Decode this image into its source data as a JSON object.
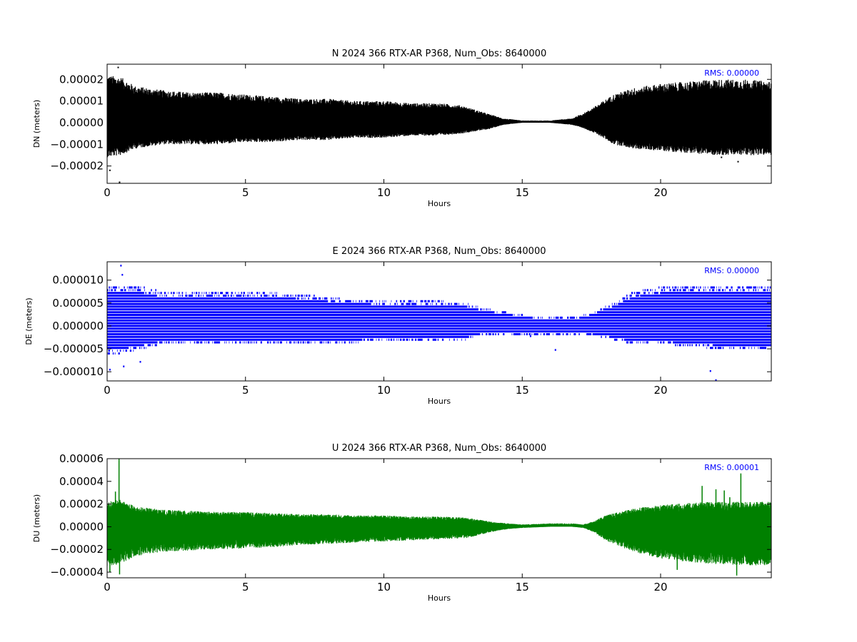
{
  "chart_data": [
    {
      "type": "scatter",
      "title": "N 2024 366 RTX-AR  P368, Num_Obs: 8640000",
      "xlabel": "Hours",
      "ylabel": "DN (meters)",
      "xlim": [
        0,
        24
      ],
      "ylim": [
        -2.8e-05,
        2.7e-05
      ],
      "xticks": [
        0,
        5,
        10,
        15,
        20
      ],
      "yticks": [
        -2e-05,
        -1e-05,
        0.0,
        1e-05,
        2e-05
      ],
      "ytick_labels": [
        "−0.00002",
        "−0.00001",
        "0.00000",
        "0.00001",
        "0.00002"
      ],
      "annotation": "RMS:  0.00000",
      "series_color": "#000000",
      "annotation_color": "#0000ff",
      "envelope": {
        "hours": [
          0,
          0.5,
          1,
          2,
          3,
          4,
          5,
          6,
          7,
          8,
          9,
          10,
          11,
          12,
          12.8,
          13.3,
          13.8,
          14.3,
          15,
          16,
          16.8,
          17.3,
          17.8,
          18.3,
          19,
          20,
          21,
          22,
          23,
          24
        ],
        "upper": [
          2.2e-05,
          2.1e-05,
          1.7e-05,
          1.5e-05,
          1.4e-05,
          1.4e-05,
          1.3e-05,
          1.2e-05,
          1.1e-05,
          1.1e-05,
          1e-05,
          1e-05,
          9e-06,
          9e-06,
          8e-06,
          6e-06,
          4e-06,
          2e-06,
          1e-06,
          1e-06,
          2e-06,
          5e-06,
          9e-06,
          1.3e-05,
          1.6e-05,
          1.8e-05,
          1.9e-05,
          2e-05,
          2e-05,
          1.9e-05
        ],
        "lower": [
          -1.6e-05,
          -1.5e-05,
          -1.2e-05,
          -1e-05,
          -1e-05,
          -1e-05,
          -9e-06,
          -9e-06,
          -8e-06,
          -8e-06,
          -7e-06,
          -7e-06,
          -6e-06,
          -6e-06,
          -5e-06,
          -4e-06,
          -3e-06,
          -1e-06,
          0.0,
          0.0,
          -1e-06,
          -3e-06,
          -6e-06,
          -1e-05,
          -1.2e-05,
          -1.3e-05,
          -1.4e-05,
          -1.5e-05,
          -1.5e-05,
          -1.5e-05
        ]
      },
      "outliers": [
        [
          0.4,
          2.55e-05
        ],
        [
          0.45,
          -2.75e-05
        ],
        [
          0.1,
          -2.2e-05
        ],
        [
          22.8,
          -1.8e-05
        ],
        [
          22.2,
          -1.6e-05
        ]
      ]
    },
    {
      "type": "scatter",
      "title": "E 2024 366 RTX-AR  P368, Num_Obs: 8640000",
      "xlabel": "Hours",
      "ylabel": "DE (meters)",
      "xlim": [
        0,
        24
      ],
      "ylim": [
        -1.2e-05,
        1.4e-05
      ],
      "xticks": [
        0,
        5,
        10,
        15,
        20
      ],
      "yticks": [
        -1e-05,
        -5e-06,
        0.0,
        5e-06,
        1e-05
      ],
      "ytick_labels": [
        "−0.000010",
        "−0.000005",
        "0.000000",
        "0.000005",
        "0.000010"
      ],
      "annotation": "RMS:  0.00000",
      "series_color": "#0000ff",
      "annotation_color": "#0000ff",
      "quantum": 6e-07,
      "envelope": {
        "hours": [
          0,
          0.5,
          1.3,
          2,
          3,
          5,
          7,
          8.5,
          10,
          12,
          13,
          13.5,
          14.5,
          15.5,
          17,
          17.5,
          18.3,
          19,
          20,
          22,
          24
        ],
        "upper": [
          8.5e-06,
          8.5e-06,
          8.5e-06,
          7.5e-06,
          7.5e-06,
          7.5e-06,
          7e-06,
          6e-06,
          5.5e-06,
          5.5e-06,
          5e-06,
          4e-06,
          3e-06,
          2e-06,
          2e-06,
          3e-06,
          5e-06,
          7.5e-06,
          8.5e-06,
          8.5e-06,
          8.5e-06
        ],
        "lower": [
          -6e-06,
          -6e-06,
          -5e-06,
          -4e-06,
          -4e-06,
          -4e-06,
          -4e-06,
          -4e-06,
          -3e-06,
          -3e-06,
          -3e-06,
          -2e-06,
          -2e-06,
          -2e-06,
          -2e-06,
          -2e-06,
          -3e-06,
          -4e-06,
          -4e-06,
          -5e-06,
          -5e-06
        ]
      },
      "outliers": [
        [
          0.5,
          1.32e-05
        ],
        [
          0.55,
          1.12e-05
        ],
        [
          0.1,
          -9.5e-06
        ],
        [
          0.6,
          -8.8e-06
        ],
        [
          1.2,
          -7.8e-06
        ],
        [
          21.8,
          -9.8e-06
        ],
        [
          22.0,
          -1.18e-05
        ],
        [
          16.2,
          -5.2e-06
        ],
        [
          15.3,
          -2.2e-06
        ]
      ]
    },
    {
      "type": "line",
      "title": "U 2024 366 RTX-AR  P368, Num_Obs: 8640000",
      "xlabel": "Hours",
      "ylabel": "DU (meters)",
      "xlim": [
        0,
        24
      ],
      "ylim": [
        -4.5e-05,
        6e-05
      ],
      "xticks": [
        0,
        5,
        10,
        15,
        20
      ],
      "yticks": [
        -4e-05,
        -2e-05,
        0.0,
        2e-05,
        4e-05,
        6e-05
      ],
      "ytick_labels": [
        "−0.00004",
        "−0.00002",
        "0.00000",
        "0.00002",
        "0.00004",
        "0.00006"
      ],
      "annotation": "RMS:  0.00001",
      "series_color": "#008000",
      "annotation_color": "#0000ff",
      "envelope": {
        "hours": [
          0,
          0.5,
          1,
          2,
          3,
          4,
          5,
          6,
          7,
          8,
          9,
          10,
          11,
          12,
          13,
          13.5,
          14,
          14.5,
          15,
          16,
          16.8,
          17.2,
          17.6,
          18,
          19,
          20,
          21,
          22,
          23,
          24
        ],
        "upper": [
          2.2e-05,
          2.4e-05,
          1.8e-05,
          1.5e-05,
          1.4e-05,
          1.3e-05,
          1.3e-05,
          1.2e-05,
          1.1e-05,
          1.1e-05,
          1e-05,
          1e-05,
          9e-06,
          9e-06,
          8e-06,
          6e-06,
          4e-06,
          3e-06,
          2e-06,
          3e-06,
          3e-06,
          2e-06,
          5e-06,
          1e-05,
          1.6e-05,
          1.9e-05,
          2.1e-05,
          2.2e-05,
          2.2e-05,
          2.2e-05
        ],
        "lower": [
          -3.5e-05,
          -3.3e-05,
          -2.6e-05,
          -2.2e-05,
          -2.1e-05,
          -2e-05,
          -1.9e-05,
          -1.8e-05,
          -1.6e-05,
          -1.5e-05,
          -1.4e-05,
          -1.3e-05,
          -1.2e-05,
          -1.1e-05,
          -1e-05,
          -7e-06,
          -4e-06,
          -2e-06,
          -1e-06,
          0.0,
          0.0,
          -1e-06,
          -5e-06,
          -1.2e-05,
          -2.2e-05,
          -2.8e-05,
          -3.1e-05,
          -3.3e-05,
          -3.4e-05,
          -3.4e-05
        ]
      },
      "spikes": [
        [
          0.43,
          6e-05
        ],
        [
          0.1,
          -4e-05
        ],
        [
          0.3,
          3.1e-05
        ],
        [
          21.5,
          3.6e-05
        ],
        [
          22.0,
          3.3e-05
        ],
        [
          22.3,
          3.2e-05
        ],
        [
          22.5,
          2.6e-05
        ],
        [
          22.9,
          4.7e-05
        ],
        [
          22.75,
          -4.3e-05
        ],
        [
          20.6,
          -3.8e-05
        ],
        [
          0.45,
          -4.2e-05
        ]
      ]
    }
  ]
}
